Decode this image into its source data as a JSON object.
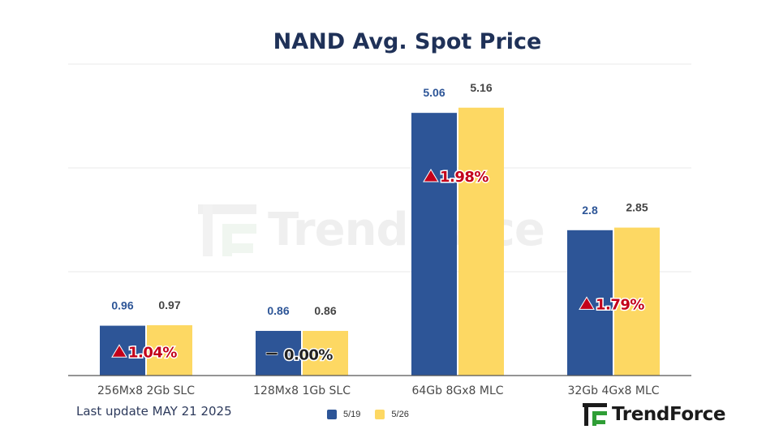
{
  "chart_data": {
    "type": "bar",
    "title": "NAND Avg. Spot Price",
    "categories": [
      "256Mx8 2Gb SLC",
      "128Mx8 1Gb SLC",
      "64Gb 8Gx8 MLC",
      "32Gb 4Gx8 MLC"
    ],
    "series": [
      {
        "name": "5/19",
        "values": [
          0.96,
          0.86,
          5.06,
          2.8
        ],
        "labels": [
          "0.96",
          "0.86",
          "5.06",
          "2.8"
        ],
        "color": "#2d5597"
      },
      {
        "name": "5/26",
        "values": [
          0.97,
          0.86,
          5.16,
          2.85
        ],
        "labels": [
          "0.97",
          "0.86",
          "5.16",
          "2.85"
        ],
        "color": "#fdd863"
      }
    ],
    "changes": [
      {
        "marker": "up",
        "text": "1.04%"
      },
      {
        "marker": "flat",
        "text": "0.00%"
      },
      {
        "marker": "up",
        "text": "1.98%"
      },
      {
        "marker": "up",
        "text": "1.79%"
      }
    ],
    "ylim": [
      0,
      6
    ],
    "grid": true,
    "legend_position": "bottom"
  },
  "footer": {
    "last_update": "Last update MAY 21 2025"
  },
  "brand": {
    "name": "TrendForce",
    "watermark": "TrendForce"
  },
  "colors": {
    "title": "#1f3158",
    "series1_label": "#2d5597",
    "series2_label": "#444444",
    "change_text": "#c3001a",
    "grid": "#e8e8e8",
    "brand_green": "#2f9e36"
  }
}
